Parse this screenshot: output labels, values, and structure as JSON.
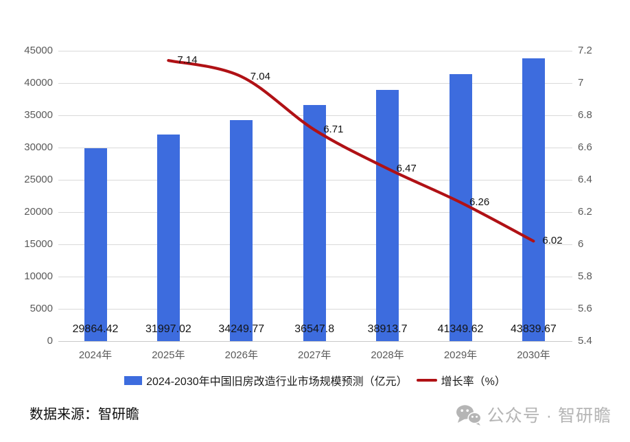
{
  "chart_data": {
    "type": "bar",
    "subtype": "combo-bar-line",
    "categories": [
      "2024年",
      "2025年",
      "2026年",
      "2027年",
      "2028年",
      "2029年",
      "2030年"
    ],
    "series": [
      {
        "name": "2024-2030年中国旧房改造行业市场规模预测（亿元）",
        "type": "bar",
        "axis": "left",
        "color": "#3d6cde",
        "values": [
          29864.42,
          31997.02,
          34249.77,
          36547.8,
          38913.7,
          41349.62,
          43839.67
        ],
        "value_labels": [
          "29864.42",
          "31997.02",
          "34249.77",
          "36547.8",
          "38913.7",
          "41349.62",
          "43839.67"
        ]
      },
      {
        "name": "增长率（%）",
        "type": "line",
        "axis": "right",
        "color": "#b01115",
        "values": [
          null,
          7.14,
          7.04,
          6.71,
          6.47,
          6.26,
          6.02
        ],
        "value_labels": [
          null,
          "7.14",
          "7.04",
          "6.71",
          "6.47",
          "6.26",
          "6.02"
        ]
      }
    ],
    "axis_left": {
      "min": 0,
      "max": 45000,
      "step": 5000
    },
    "axis_right": {
      "min": 5.4,
      "max": 7.2,
      "step": 0.2
    },
    "grid": true,
    "legend_position": "bottom"
  },
  "footer": {
    "source": "数据来源：智研瞻",
    "watermark": "公众号 · 智研瞻"
  },
  "colors": {
    "grid": "#d9d9d9",
    "axis_text": "#595959",
    "value_text": "#141414"
  }
}
